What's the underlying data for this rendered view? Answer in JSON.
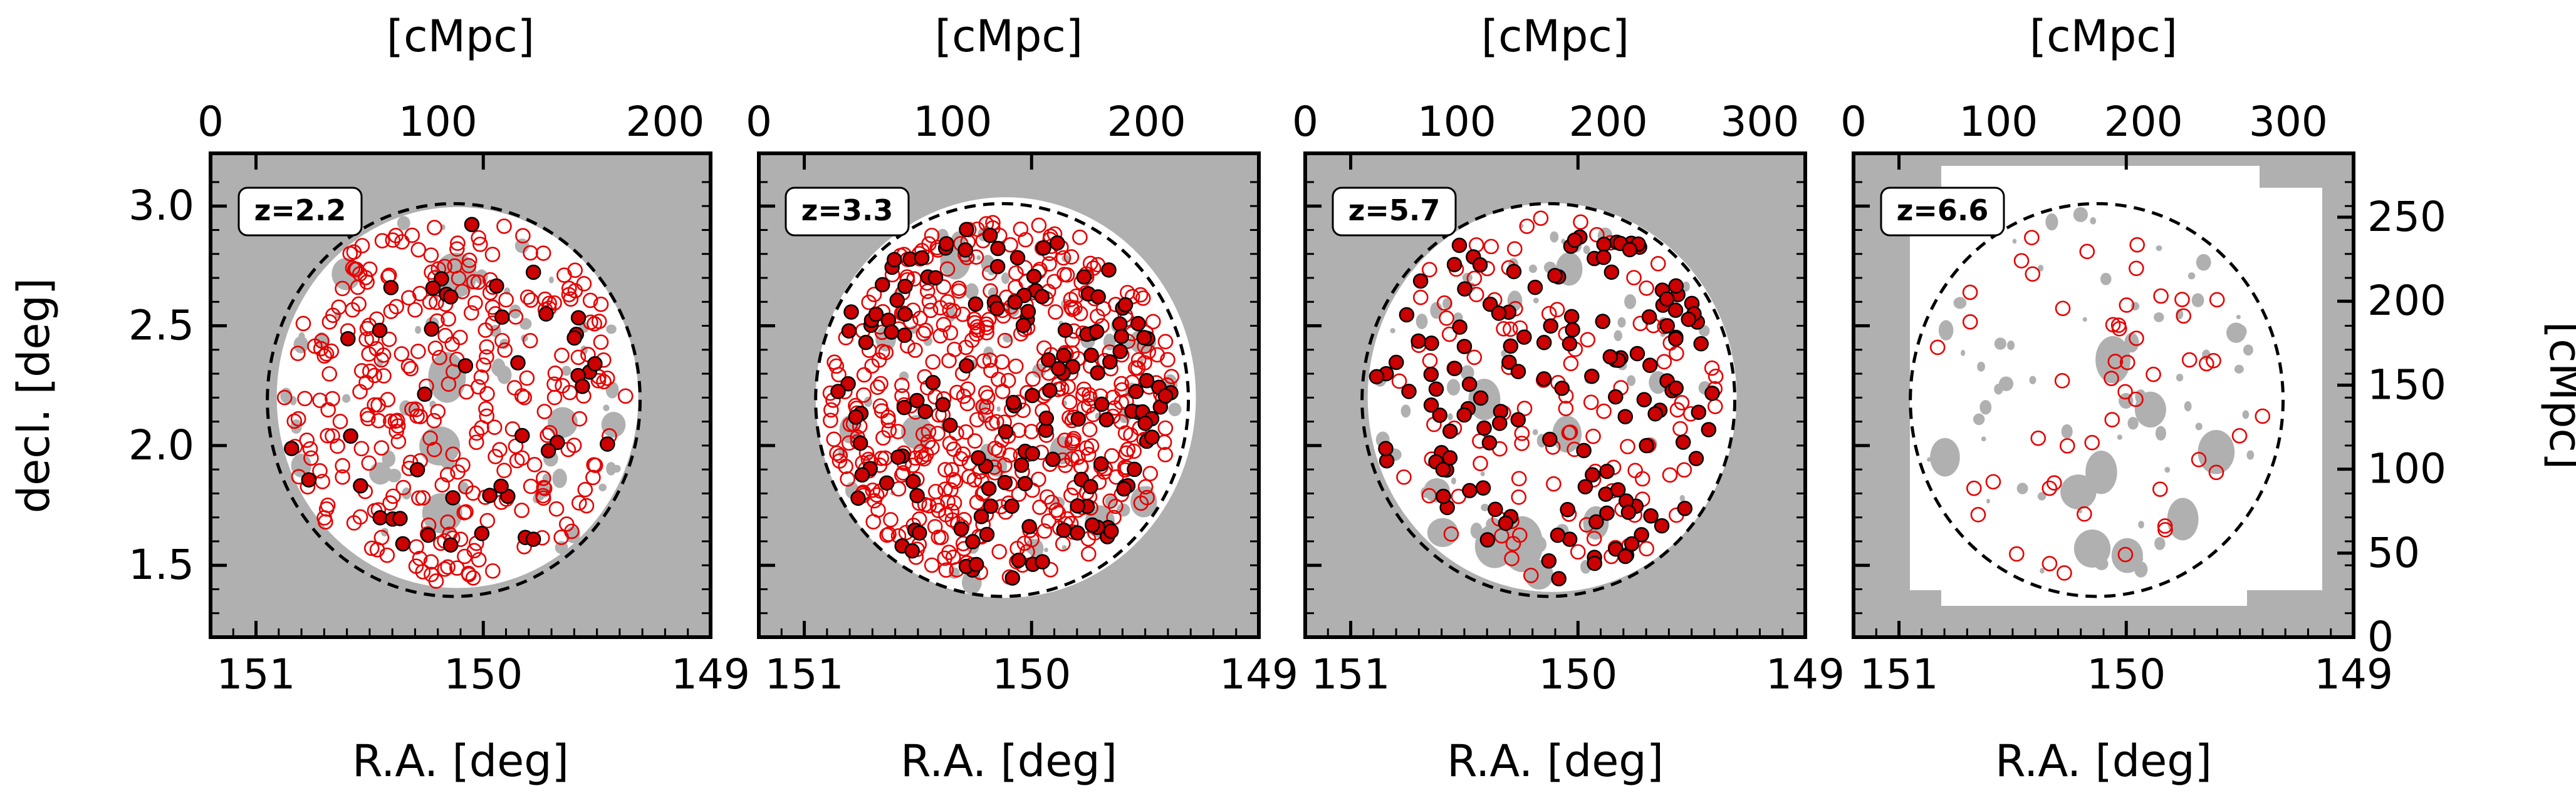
{
  "chart_data": [
    {
      "type": "scatter",
      "panel_label": "z=2.2",
      "xlabel": "R.A. [deg]",
      "ylabel": "decl. [deg]",
      "top_xlabel": "[cMpc]",
      "xlim": [
        151.2,
        149.0
      ],
      "ylim": [
        1.2,
        3.22
      ],
      "xticks": [
        "151",
        "150",
        "149"
      ],
      "yticks": [
        "1.5",
        "2.0",
        "2.5",
        "3.0"
      ],
      "top_xlim": [
        0,
        220
      ],
      "top_xticks": [
        "0",
        "100",
        "200"
      ],
      "circle_center": [
        150.13,
        2.19
      ],
      "circle_radius_deg": 0.82,
      "n_open": 300,
      "n_filled": 45,
      "open_color": "#e60000",
      "filled_color": "#cc0000",
      "mask_color": "#b0b0b0",
      "series": [
        {
          "name": "open markers (sample)",
          "x": [
            150.6,
            150.4,
            150.2,
            149.9,
            149.7,
            150.5,
            150.1,
            149.6
          ],
          "y": [
            2.7,
            2.5,
            2.3,
            2.0,
            1.8,
            1.7,
            2.85,
            2.1
          ]
        },
        {
          "name": "filled markers (sample)",
          "x": [
            150.75,
            150.3,
            149.55,
            149.9,
            150.05
          ],
          "y": [
            2.65,
            2.55,
            2.05,
            1.9,
            1.6
          ]
        }
      ]
    },
    {
      "type": "scatter",
      "panel_label": "z=3.3",
      "xlabel": "R.A. [deg]",
      "top_xlabel": "[cMpc]",
      "xlim": [
        151.2,
        149.0
      ],
      "ylim": [
        1.2,
        3.22
      ],
      "xticks": [
        "151",
        "150",
        "149"
      ],
      "top_xlim": [
        0,
        258
      ],
      "top_xticks": [
        "0",
        "100",
        "200"
      ],
      "circle_center": [
        150.13,
        2.19
      ],
      "circle_radius_deg": 0.82,
      "n_open": 480,
      "n_filled": 150,
      "open_color": "#e60000",
      "filled_color": "#cc0000",
      "mask_color": "#b0b0b0",
      "series": [
        {
          "name": "open markers (sample)",
          "x": [
            150.7,
            150.3,
            150.0,
            149.6,
            150.5
          ],
          "y": [
            2.6,
            2.3,
            2.0,
            1.8,
            1.6
          ]
        },
        {
          "name": "filled markers (sample)",
          "x": [
            150.4,
            150.1,
            149.8,
            150.6,
            149.7
          ],
          "y": [
            2.8,
            2.5,
            2.2,
            1.9,
            1.7
          ]
        }
      ]
    },
    {
      "type": "scatter",
      "panel_label": "z=5.7",
      "xlabel": "R.A. [deg]",
      "top_xlabel": "[cMpc]",
      "xlim": [
        151.2,
        149.0
      ],
      "ylim": [
        1.2,
        3.22
      ],
      "xticks": [
        "151",
        "150",
        "149"
      ],
      "top_xlim": [
        0,
        330
      ],
      "top_xticks": [
        "0",
        "100",
        "200",
        "300"
      ],
      "circle_center": [
        150.13,
        2.19
      ],
      "circle_radius_deg": 0.82,
      "n_open": 110,
      "n_filled": 140,
      "open_color": "#e60000",
      "filled_color": "#cc0000",
      "mask_color": "#b0b0b0",
      "series": [
        {
          "name": "open markers (sample)",
          "x": [
            150.5,
            150.0,
            149.7,
            150.3
          ],
          "y": [
            2.7,
            2.2,
            1.9,
            1.7
          ]
        },
        {
          "name": "filled markers (sample)",
          "x": [
            150.4,
            150.1,
            149.6,
            150.7,
            149.9
          ],
          "y": [
            2.8,
            2.4,
            2.0,
            2.2,
            1.6
          ]
        }
      ]
    },
    {
      "type": "scatter",
      "panel_label": "z=6.6",
      "xlabel": "R.A. [deg]",
      "top_xlabel": "[cMpc]",
      "right_ylabel": "[cMpc]",
      "xlim": [
        151.2,
        149.0
      ],
      "ylim": [
        1.2,
        3.22
      ],
      "xticks": [
        "151",
        "150",
        "149"
      ],
      "top_xlim": [
        0,
        345
      ],
      "top_xticks": [
        "0",
        "100",
        "200",
        "300"
      ],
      "right_ylim": [
        0,
        288
      ],
      "right_yticks": [
        "0",
        "50",
        "100",
        "150",
        "200",
        "250"
      ],
      "circle_center": [
        150.13,
        2.19
      ],
      "circle_radius_deg": 0.82,
      "n_open": 50,
      "n_filled": 0,
      "open_color": "#e60000",
      "filled_color": "#cc0000",
      "mask_color": "#b0b0b0",
      "series": [
        {
          "name": "open markers (sample)",
          "x": [
            150.6,
            150.2,
            149.9,
            150.4,
            149.6
          ],
          "y": [
            2.6,
            2.1,
            1.8,
            1.6,
            2.4
          ]
        }
      ]
    }
  ]
}
